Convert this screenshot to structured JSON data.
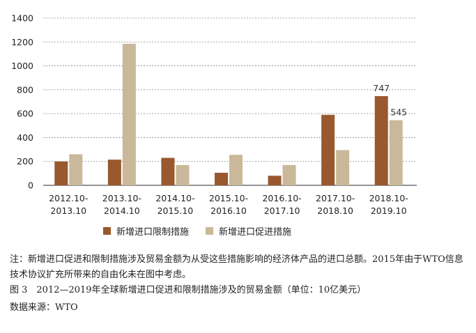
{
  "chart_data": {
    "type": "bar",
    "categories": [
      "2012.10-\n2013.10",
      "2013.10-\n2014.10",
      "2014.10-\n2015.10",
      "2015.10-\n2016.10",
      "2016.10-\n2017.10",
      "2017.10-\n2018.10",
      "2018.10-\n2019.10"
    ],
    "series": [
      {
        "name": "新增进口限制措施",
        "color": "#99582d",
        "values": [
          200,
          215,
          230,
          105,
          80,
          590,
          747
        ]
      },
      {
        "name": "新增进口促进措施",
        "color": "#c9b99a",
        "values": [
          260,
          1185,
          170,
          255,
          170,
          295,
          545
        ]
      }
    ],
    "data_labels": [
      {
        "series": 0,
        "index": 6,
        "text": "747"
      },
      {
        "series": 1,
        "index": 6,
        "text": "545"
      }
    ],
    "ylim": [
      0,
      1400
    ],
    "yticks": [
      0,
      200,
      400,
      600,
      800,
      1000,
      1200,
      1400
    ],
    "grid": true,
    "legend_position": "bottom"
  },
  "legend": {
    "restrict_label": "新增进口限制措施",
    "promote_label": "新增进口促进措施",
    "restrict_color": "#99582d",
    "promote_color": "#c9b99a"
  },
  "caption": {
    "note": "注：新增进口促进和限制措施涉及贸易金额为从受这些措施影响的经济体产品的进口总额。2015年由于WTO信息技术协议扩充所带来的自由化未在图中考虑。",
    "figure": "图 3　2012—2019年全球新增进口促进和限制措施涉及的贸易金额（单位：10亿美元）",
    "source": "数据来源：WTO"
  }
}
